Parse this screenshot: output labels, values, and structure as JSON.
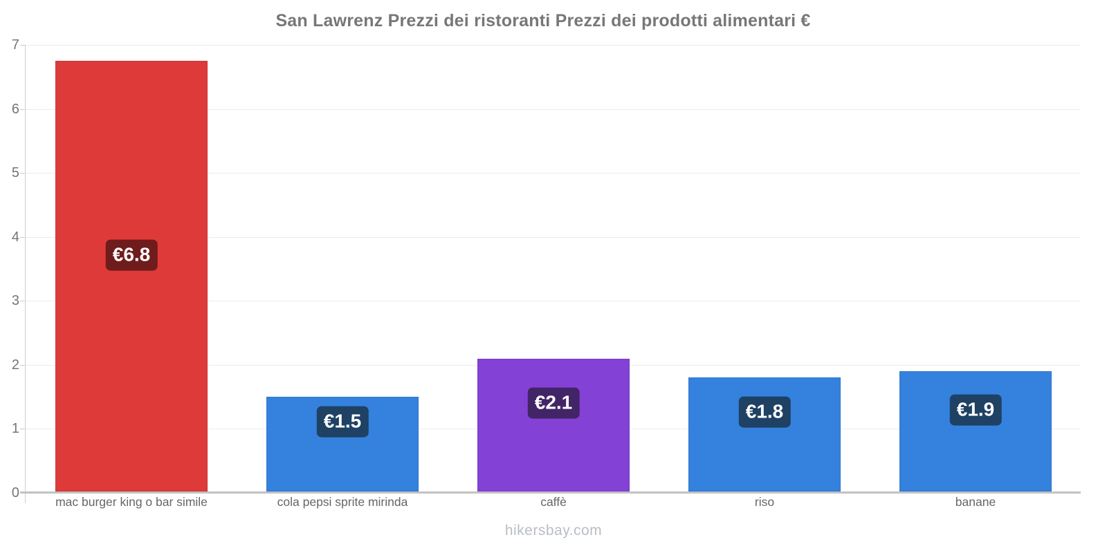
{
  "page": {
    "source": "hikersbay.com"
  },
  "chart_data": {
    "type": "bar",
    "title": "San Lawrenz Prezzi dei ristoranti Prezzi dei prodotti alimentari €",
    "categories": [
      "mac burger king o bar simile",
      "cola pepsi sprite mirinda",
      "caffè",
      "riso",
      "banane"
    ],
    "values": [
      6.75,
      1.5,
      2.1,
      1.8,
      1.9
    ],
    "value_labels": [
      "€6.8",
      "€1.5",
      "€2.1",
      "€1.8",
      "€1.9"
    ],
    "bar_colors": [
      "#de3a3a",
      "#3482de",
      "#8441d6",
      "#3482de",
      "#3482de"
    ],
    "value_label_bg_colors": [
      "#6f1c1c",
      "#1e4164",
      "#422566",
      "#1e4164",
      "#1e4164"
    ],
    "xlabel": "",
    "ylabel": "",
    "ylim": [
      0,
      7
    ],
    "yticks": [
      0,
      1,
      2,
      3,
      4,
      5,
      6,
      7
    ],
    "grid": true,
    "legend": "none",
    "currency": "€",
    "source": "hikersbay.com"
  }
}
